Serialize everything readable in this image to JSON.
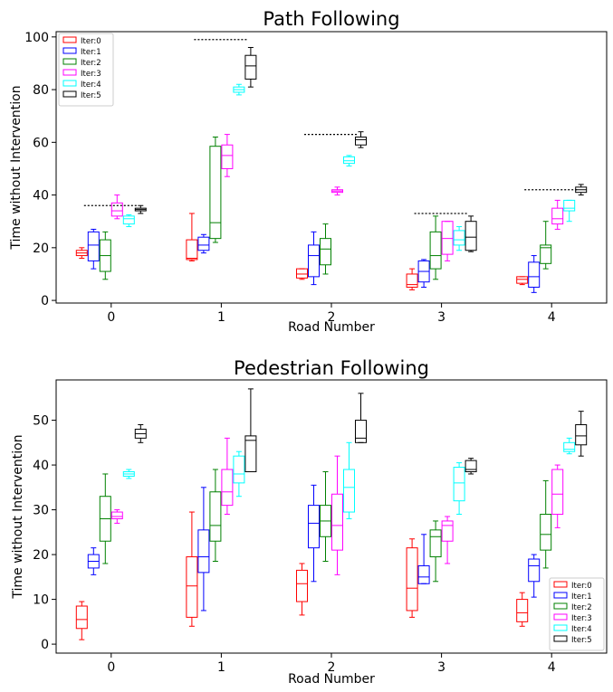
{
  "legend_labels": [
    "Iter:0",
    "Iter:1",
    "Iter:2",
    "Iter:3",
    "Iter:4",
    "Iter:5"
  ],
  "series_colors": [
    "#ff0000",
    "#0000ff",
    "#008000",
    "#ff00ff",
    "#00ffff",
    "#000000"
  ],
  "chart_data": [
    {
      "type": "box",
      "title": "Path Following",
      "xlabel": "Road Number",
      "ylabel": "Time without Intervention",
      "categories": [
        "0",
        "1",
        "2",
        "3",
        "4"
      ],
      "ylim": [
        -1,
        102
      ],
      "yticks": [
        0,
        20,
        40,
        60,
        80,
        100
      ],
      "legend_position": "upper-left",
      "reference_lines": [
        36,
        99,
        63,
        33,
        42
      ],
      "series": [
        {
          "name": "Iter:0",
          "boxes": [
            [
              16,
              17,
              18,
              19,
              20
            ],
            [
              15,
              15.5,
              16,
              23,
              33
            ],
            [
              8,
              8.5,
              10,
              12,
              12
            ],
            [
              4,
              5,
              6,
              10,
              12
            ],
            [
              6,
              6.5,
              8,
              9,
              9
            ]
          ]
        },
        {
          "name": "Iter:1",
          "boxes": [
            [
              12,
              15,
              21,
              26,
              27
            ],
            [
              18,
              19,
              21,
              24,
              25
            ],
            [
              6,
              9,
              17,
              21,
              26
            ],
            [
              5,
              7,
              11,
              15,
              15.5
            ],
            [
              3,
              5,
              9,
              14.5,
              17
            ]
          ]
        },
        {
          "name": "Iter:2",
          "boxes": [
            [
              8,
              11,
              17,
              23,
              26
            ],
            [
              22,
              23.5,
              29.5,
              58.5,
              62
            ],
            [
              10,
              13.5,
              19.5,
              23.5,
              29
            ],
            [
              8,
              12,
              17,
              26,
              32
            ],
            [
              12,
              14,
              20,
              21,
              30
            ]
          ]
        },
        {
          "name": "Iter:3",
          "boxes": [
            [
              31,
              32,
              34,
              37,
              40
            ],
            [
              47,
              50,
              55,
              59,
              63
            ],
            [
              40,
              41,
              41.5,
              42,
              43
            ],
            [
              15,
              17.5,
              23.5,
              30,
              30
            ],
            [
              27,
              29,
              31,
              35,
              38
            ]
          ]
        },
        {
          "name": "Iter:4",
          "boxes": [
            [
              28,
              29,
              31,
              32,
              32.5
            ],
            [
              78,
              79,
              80,
              81,
              82
            ],
            [
              51,
              52,
              53,
              54.5,
              55
            ],
            [
              19,
              21,
              23,
              26.5,
              28
            ],
            [
              30,
              34,
              35,
              38,
              38
            ]
          ]
        },
        {
          "name": "Iter:5",
          "boxes": [
            [
              33,
              34,
              34.5,
              35,
              36
            ],
            [
              81,
              84,
              89,
              93,
              96
            ],
            [
              58,
              59,
              61,
              62,
              64
            ],
            [
              18.5,
              19,
              24,
              30,
              32
            ],
            [
              40,
              41,
              42,
              43,
              44
            ]
          ]
        }
      ]
    },
    {
      "type": "box",
      "title": "Pedestrian Following",
      "xlabel": "Road Number",
      "ylabel": "Time without Intervention",
      "categories": [
        "0",
        "1",
        "2",
        "3",
        "4"
      ],
      "ylim": [
        -2,
        59
      ],
      "yticks": [
        0,
        10,
        20,
        30,
        40,
        50
      ],
      "legend_position": "lower-right",
      "series": [
        {
          "name": "Iter:0",
          "boxes": [
            [
              1,
              3.5,
              5.5,
              8.5,
              9.5
            ],
            [
              4,
              6,
              13,
              19.5,
              29.5
            ],
            [
              6.5,
              9.5,
              13.5,
              16.5,
              18
            ],
            [
              6,
              7.5,
              12.5,
              21.5,
              23.5
            ],
            [
              4,
              5,
              7,
              10,
              11.5
            ]
          ]
        },
        {
          "name": "Iter:1",
          "boxes": [
            [
              15.5,
              17,
              18.5,
              20,
              21.5
            ],
            [
              7.5,
              16,
              19.5,
              25.5,
              35
            ],
            [
              14,
              21.5,
              27,
              31,
              35.5
            ],
            [
              13.5,
              13.5,
              15,
              17.5,
              24.5
            ],
            [
              10.5,
              14,
              17.5,
              19,
              20
            ]
          ]
        },
        {
          "name": "Iter:2",
          "boxes": [
            [
              18,
              23,
              28,
              33,
              38
            ],
            [
              18.5,
              23,
              26.5,
              34,
              39
            ],
            [
              18.5,
              24,
              27.5,
              31,
              38.5
            ],
            [
              14,
              19.5,
              24,
              25.5,
              27.5
            ],
            [
              17,
              21,
              24.5,
              29,
              36.5
            ]
          ]
        },
        {
          "name": "Iter:3",
          "boxes": [
            [
              27,
              28,
              28.5,
              29.5,
              30
            ],
            [
              29,
              31,
              34,
              39,
              46
            ],
            [
              15.5,
              21,
              26.5,
              33.5,
              42
            ],
            [
              18,
              23,
              26.5,
              27.5,
              28.5
            ],
            [
              26,
              29,
              33.5,
              39,
              40
            ]
          ]
        },
        {
          "name": "Iter:4",
          "boxes": [
            [
              37,
              37.5,
              38,
              38.5,
              39
            ],
            [
              33,
              36,
              38,
              42,
              43
            ],
            [
              28,
              29.5,
              35,
              39,
              45
            ],
            [
              29,
              32,
              36,
              39.5,
              40.5
            ],
            [
              42.5,
              43,
              43.5,
              45,
              46
            ]
          ]
        },
        {
          "name": "Iter:5",
          "boxes": [
            [
              45,
              46,
              47,
              48,
              49
            ],
            [
              38.5,
              38.5,
              45.5,
              46.5,
              57
            ],
            [
              45,
              45,
              46,
              50,
              56
            ],
            [
              38,
              38.5,
              39,
              41,
              41.5
            ],
            [
              42,
              44.5,
              46.5,
              49,
              52
            ]
          ]
        }
      ]
    }
  ]
}
